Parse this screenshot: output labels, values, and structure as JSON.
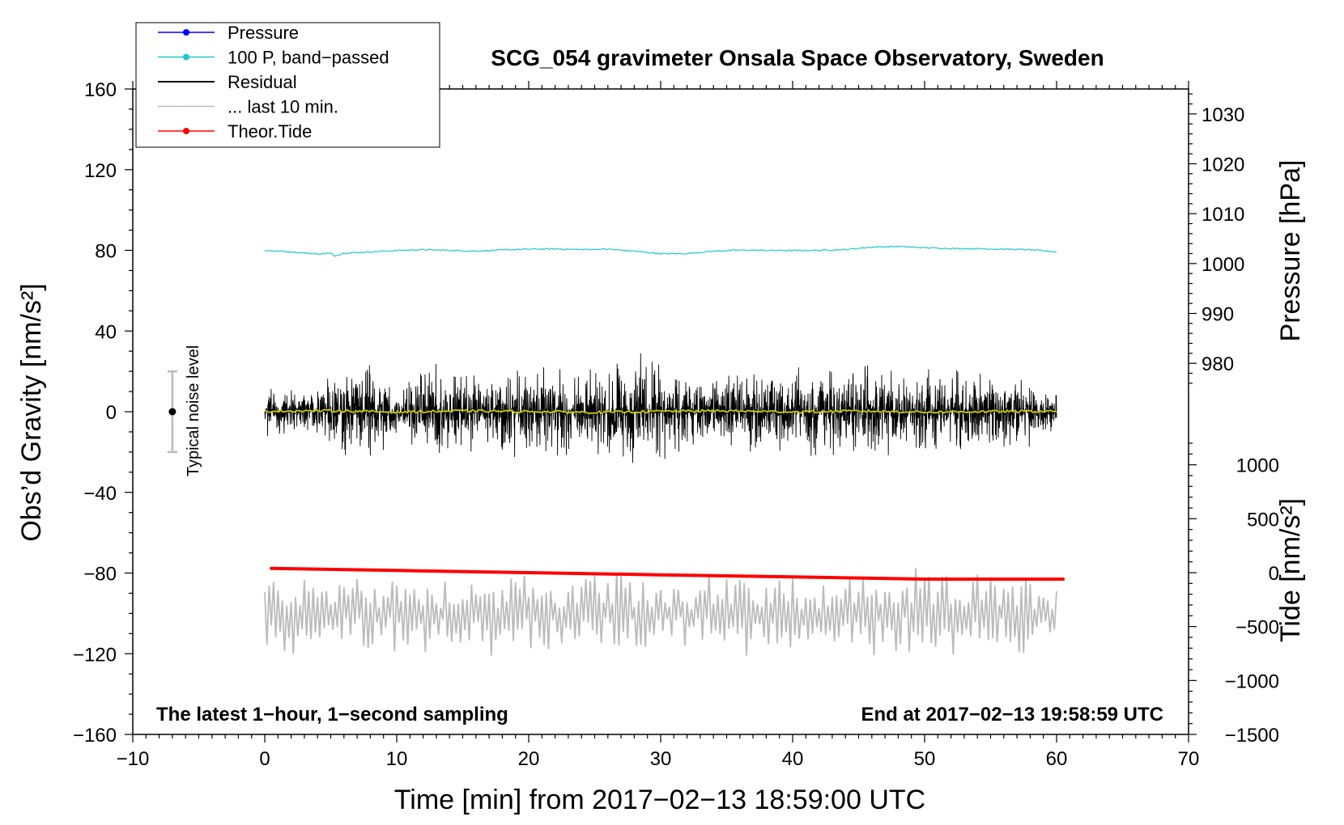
{
  "chart_data": {
    "type": "line",
    "title": "SCG_054 gravimeter Onsala Space Observatory, Sweden",
    "xlabel": "Time [min] from 2017−02−13 18:59:00 UTC",
    "ylabel_left": "Obs’d Gravity [nm/s²]",
    "ylabel_right_pressure": "Pressure [hPa]",
    "ylabel_right_tide": "Tide [nm/s²]",
    "xlim": [
      -10,
      70
    ],
    "ylim_left": [
      -160,
      160
    ],
    "ylim_pressure": [
      975,
      1035
    ],
    "ylim_tide": [
      -1500,
      1500
    ],
    "x_ticks": [
      {
        "value": -10,
        "label": "−10"
      },
      {
        "value": 0,
        "label": "0"
      },
      {
        "value": 10,
        "label": "10"
      },
      {
        "value": 20,
        "label": "20"
      },
      {
        "value": 30,
        "label": "30"
      },
      {
        "value": 40,
        "label": "40"
      },
      {
        "value": 50,
        "label": "50"
      },
      {
        "value": 60,
        "label": "60"
      },
      {
        "value": 70,
        "label": "70"
      }
    ],
    "y_left_ticks": [
      {
        "value": 160,
        "label": "160"
      },
      {
        "value": 120,
        "label": "120"
      },
      {
        "value": 80,
        "label": "80"
      },
      {
        "value": 40,
        "label": "40"
      },
      {
        "value": 0,
        "label": "0"
      },
      {
        "value": -40,
        "label": "−40"
      },
      {
        "value": -80,
        "label": "−80"
      },
      {
        "value": -120,
        "label": "−120"
      },
      {
        "value": -160,
        "label": "−160"
      }
    ],
    "pressure_ticks": [
      {
        "value": 1030,
        "label": "1030"
      },
      {
        "value": 1020,
        "label": "1020"
      },
      {
        "value": 1010,
        "label": "1010"
      },
      {
        "value": 1000,
        "label": "1000"
      },
      {
        "value": 990,
        "label": "990"
      },
      {
        "value": 980,
        "label": "980"
      }
    ],
    "tide_ticks": [
      {
        "value": 1000,
        "label": "1000"
      },
      {
        "value": 500,
        "label": "500"
      },
      {
        "value": 0,
        "label": "0"
      },
      {
        "value": -500,
        "label": "−500"
      },
      {
        "value": -1000,
        "label": "−1000"
      },
      {
        "value": -1500,
        "label": "−1500"
      }
    ],
    "legend": [
      {
        "label": "Pressure",
        "color": "#0000ff",
        "marker": true
      },
      {
        "label": "100 P, band−passed",
        "color": "#22c8c8",
        "marker": true
      },
      {
        "label": "Residual",
        "color": "#000000",
        "marker": false
      },
      {
        "label": "... last 10 min.",
        "color": "#bbbbbb",
        "marker": false
      },
      {
        "label": "Theor.Tide",
        "color": "#ff0000",
        "marker": true
      }
    ],
    "annotations": {
      "bottom_left": "The latest 1−hour, 1−second sampling",
      "bottom_right": "End at 2017−02−13 19:58:59 UTC",
      "noise_label": "Typical noise level"
    },
    "noise_bar": {
      "x": -7,
      "center": 0,
      "low": -20,
      "high": 20
    },
    "series": [
      {
        "name": "100 P, band−passed",
        "color": "#22c8c8",
        "x": [
          0,
          2,
          4,
          5,
          5.3,
          6,
          8,
          10,
          12,
          14,
          16,
          18,
          20,
          22,
          24,
          26,
          28,
          30,
          32,
          34,
          36,
          38,
          40,
          42,
          44,
          46,
          48,
          50,
          52,
          54,
          56,
          58,
          60
        ],
        "values": [
          80,
          79.2,
          78.2,
          78.5,
          77.3,
          78.6,
          79.2,
          79.9,
          80.3,
          80.0,
          79.6,
          80.2,
          80.6,
          80.7,
          80.4,
          80.6,
          79.6,
          78.3,
          78.4,
          79.6,
          80.1,
          80.0,
          79.9,
          80.0,
          80.4,
          81.6,
          81.9,
          81.3,
          80.9,
          80.8,
          80.6,
          80.3,
          79.2
        ]
      },
      {
        "name": "Residual",
        "color": "#000000",
        "x_range": [
          0,
          60
        ],
        "envelope_x": [
          0,
          3,
          5,
          8,
          10,
          13,
          15,
          18,
          21,
          24,
          27,
          29,
          30,
          32,
          35,
          38,
          41,
          44,
          47,
          50,
          53,
          56,
          58,
          60
        ],
        "envelope_values": [
          14,
          12,
          20,
          28,
          14,
          26,
          20,
          22,
          24,
          22,
          26,
          32,
          28,
          24,
          20,
          22,
          24,
          24,
          28,
          24,
          22,
          24,
          18,
          12
        ]
      },
      {
        "name": "Residual smoothed",
        "color": "#cccc00",
        "x": [
          0,
          5,
          10,
          15,
          20,
          25,
          30,
          35,
          40,
          45,
          50,
          55,
          60
        ],
        "values": [
          0.3,
          0.5,
          -0.2,
          0.4,
          0.1,
          -0.3,
          0.2,
          0.4,
          -0.1,
          0.3,
          -0.2,
          0.1,
          0.2
        ]
      },
      {
        "name": "Theor.Tide",
        "color": "#ff0000",
        "axis": "tide",
        "x": [
          0.5,
          10,
          20,
          30,
          40,
          50,
          60.5
        ],
        "values": [
          40,
          20,
          0,
          -20,
          -40,
          -60,
          -60
        ]
      },
      {
        "name": "... last 10 min.",
        "color": "#bbbbbb",
        "x_range": [
          0,
          60
        ],
        "center": -100,
        "amplitude_range": [
          3,
          23
        ]
      }
    ]
  }
}
